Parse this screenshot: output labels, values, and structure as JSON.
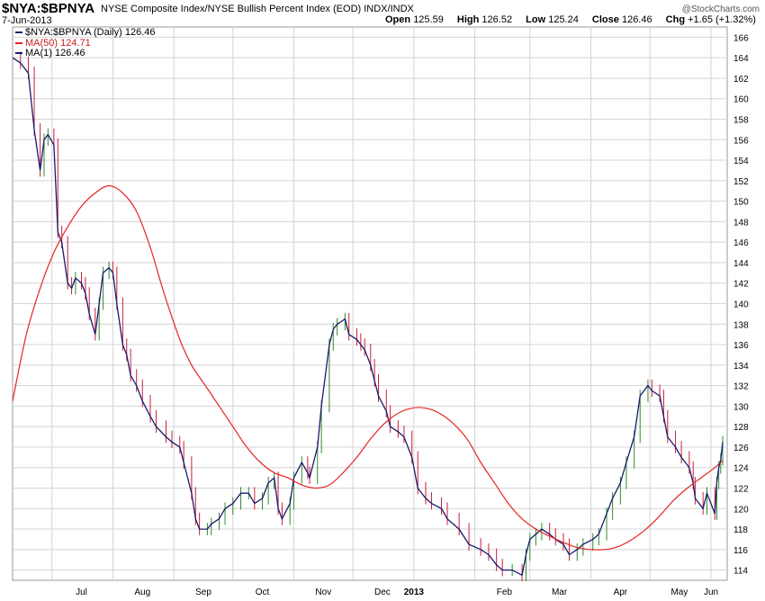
{
  "header": {
    "symbol": "$NYA:$BPNYA",
    "description": "NYSE Composite Index/NYSE Bullish Percent Index (EOD)  INDX/INDX",
    "brand": "@StockCharts.com",
    "date": "7-Jun-2013",
    "open_label": "Open",
    "open": "125.59",
    "high_label": "High",
    "high": "126.52",
    "low_label": "Low",
    "low": "125.24",
    "close_label": "Close",
    "close": "126.46",
    "chg_label": "Chg",
    "chg": "+1.65 (+1.32%)"
  },
  "legend": [
    {
      "label": "$NYA:$BPNYA (Daily) 126.46",
      "color": "#1a1a6e"
    },
    {
      "label": "MA(50) 124.71",
      "color": "#e8231f"
    },
    {
      "label": "MA(1) 126.46",
      "color": "#1a1a6e"
    }
  ],
  "chart_data": {
    "type": "line",
    "ylim": [
      113,
      167
    ],
    "yticks": [
      "114",
      "116",
      "118",
      "120",
      "122",
      "124",
      "126",
      "128",
      "130",
      "132",
      "134",
      "136",
      "138",
      "140",
      "142",
      "144",
      "146",
      "148",
      "150",
      "152",
      "154",
      "156",
      "158",
      "160",
      "162",
      "164",
      "166"
    ],
    "xticks": [
      "Jul",
      "Aug",
      "Sep",
      "Oct",
      "Nov",
      "Dec",
      "2013",
      "Feb",
      "Mar",
      "Apr",
      "May",
      "Jun"
    ],
    "x_start": "2012-06-11",
    "x_end": "2013-06-07",
    "grid": true,
    "colors": {
      "price": "#1a1a6e",
      "ma50": "#e8231f",
      "up": "#2e8b2e",
      "down": "#c81e3a",
      "grid": "#d4d4d4"
    },
    "series": [
      {
        "name": "$NYA:$BPNYA (Daily)",
        "points": [
          [
            "2012-06-11",
            164.0
          ],
          [
            "2012-06-15",
            163.5
          ],
          [
            "2012-06-19",
            162.5
          ],
          [
            "2012-06-22",
            157.0
          ],
          [
            "2012-06-25",
            153.0
          ],
          [
            "2012-06-27",
            156.0
          ],
          [
            "2012-06-29",
            156.5
          ],
          [
            "2012-07-02",
            155.5
          ],
          [
            "2012-07-04",
            147.0
          ],
          [
            "2012-07-06",
            146.0
          ],
          [
            "2012-07-09",
            142.0
          ],
          [
            "2012-07-11",
            141.5
          ],
          [
            "2012-07-13",
            142.5
          ],
          [
            "2012-07-16",
            142.0
          ],
          [
            "2012-07-18",
            141.0
          ],
          [
            "2012-07-20",
            139.0
          ],
          [
            "2012-07-23",
            137.0
          ],
          [
            "2012-07-25",
            140.0
          ],
          [
            "2012-07-27",
            143.0
          ],
          [
            "2012-07-30",
            143.5
          ],
          [
            "2012-08-01",
            143.0
          ],
          [
            "2012-08-03",
            140.0
          ],
          [
            "2012-08-06",
            136.0
          ],
          [
            "2012-08-08",
            135.0
          ],
          [
            "2012-08-10",
            133.0
          ],
          [
            "2012-08-13",
            132.0
          ],
          [
            "2012-08-16",
            130.5
          ],
          [
            "2012-08-20",
            129.0
          ],
          [
            "2012-08-23",
            128.0
          ],
          [
            "2012-08-28",
            127.0
          ],
          [
            "2012-08-31",
            126.5
          ],
          [
            "2012-09-04",
            126.0
          ],
          [
            "2012-09-06",
            124.5
          ],
          [
            "2012-09-10",
            121.5
          ],
          [
            "2012-09-12",
            119.0
          ],
          [
            "2012-09-14",
            118.0
          ],
          [
            "2012-09-18",
            118.0
          ],
          [
            "2012-09-20",
            118.5
          ],
          [
            "2012-09-24",
            119.0
          ],
          [
            "2012-09-27",
            120.0
          ],
          [
            "2012-10-01",
            120.5
          ],
          [
            "2012-10-05",
            121.5
          ],
          [
            "2012-10-09",
            121.5
          ],
          [
            "2012-10-12",
            120.5
          ],
          [
            "2012-10-16",
            121.0
          ],
          [
            "2012-10-19",
            122.5
          ],
          [
            "2012-10-22",
            123.0
          ],
          [
            "2012-10-24",
            120.0
          ],
          [
            "2012-10-26",
            119.0
          ],
          [
            "2012-10-30",
            120.5
          ],
          [
            "2012-11-01",
            123.0
          ],
          [
            "2012-11-05",
            124.5
          ],
          [
            "2012-11-08",
            123.5
          ],
          [
            "2012-11-09",
            123.0
          ],
          [
            "2012-11-13",
            126.0
          ],
          [
            "2012-11-15",
            130.0
          ],
          [
            "2012-11-19",
            136.0
          ],
          [
            "2012-11-21",
            137.5
          ],
          [
            "2012-11-23",
            138.0
          ],
          [
            "2012-11-27",
            138.5
          ],
          [
            "2012-11-29",
            137.0
          ],
          [
            "2012-12-03",
            136.5
          ],
          [
            "2012-12-05",
            136.0
          ],
          [
            "2012-12-07",
            135.5
          ],
          [
            "2012-12-10",
            134.0
          ],
          [
            "2012-12-12",
            132.5
          ],
          [
            "2012-12-14",
            131.0
          ],
          [
            "2012-12-18",
            129.5
          ],
          [
            "2012-12-20",
            128.0
          ],
          [
            "2012-12-24",
            127.5
          ],
          [
            "2012-12-27",
            127.0
          ],
          [
            "2012-12-31",
            125.0
          ],
          [
            "2013-01-03",
            122.0
          ],
          [
            "2013-01-07",
            121.0
          ],
          [
            "2013-01-10",
            120.5
          ],
          [
            "2013-01-15",
            120.0
          ],
          [
            "2013-01-18",
            119.0
          ],
          [
            "2013-01-24",
            118.0
          ],
          [
            "2013-01-29",
            116.5
          ],
          [
            "2013-02-04",
            116.0
          ],
          [
            "2013-02-08",
            115.5
          ],
          [
            "2013-02-12",
            114.5
          ],
          [
            "2013-02-15",
            114.0
          ],
          [
            "2013-02-20",
            114.0
          ],
          [
            "2013-02-25",
            113.5
          ],
          [
            "2013-02-27",
            115.5
          ],
          [
            "2013-03-01",
            117.0
          ],
          [
            "2013-03-04",
            117.5
          ],
          [
            "2013-03-07",
            118.0
          ],
          [
            "2013-03-11",
            117.5
          ],
          [
            "2013-03-14",
            117.0
          ],
          [
            "2013-03-18",
            116.5
          ],
          [
            "2013-03-21",
            115.5
          ],
          [
            "2013-03-25",
            116.0
          ],
          [
            "2013-03-28",
            116.5
          ],
          [
            "2013-04-02",
            117.0
          ],
          [
            "2013-04-05",
            117.5
          ],
          [
            "2013-04-09",
            119.5
          ],
          [
            "2013-04-12",
            121.0
          ],
          [
            "2013-04-16",
            122.5
          ],
          [
            "2013-04-19",
            124.5
          ],
          [
            "2013-04-23",
            127.0
          ],
          [
            "2013-04-26",
            131.0
          ],
          [
            "2013-04-30",
            132.0
          ],
          [
            "2013-05-02",
            131.5
          ],
          [
            "2013-05-06",
            131.0
          ],
          [
            "2013-05-08",
            129.0
          ],
          [
            "2013-05-10",
            127.0
          ],
          [
            "2013-05-14",
            126.0
          ],
          [
            "2013-05-17",
            125.0
          ],
          [
            "2013-05-21",
            124.0
          ],
          [
            "2013-05-23",
            122.5
          ],
          [
            "2013-05-24",
            121.0
          ],
          [
            "2013-05-28",
            120.0
          ],
          [
            "2013-05-30",
            121.5
          ],
          [
            "2013-06-03",
            119.5
          ],
          [
            "2013-06-04",
            122.5
          ],
          [
            "2013-06-05",
            124.0
          ],
          [
            "2013-06-06",
            124.8
          ],
          [
            "2013-06-07",
            126.5
          ]
        ]
      },
      {
        "name": "MA(50)",
        "points": [
          [
            "2012-06-11",
            130.5
          ],
          [
            "2012-06-18",
            137.0
          ],
          [
            "2012-06-25",
            141.5
          ],
          [
            "2012-07-02",
            145.0
          ],
          [
            "2012-07-09",
            147.5
          ],
          [
            "2012-07-16",
            149.5
          ],
          [
            "2012-07-23",
            150.8
          ],
          [
            "2012-07-30",
            151.5
          ],
          [
            "2012-08-06",
            150.8
          ],
          [
            "2012-08-13",
            149.0
          ],
          [
            "2012-08-20",
            145.5
          ],
          [
            "2012-08-27",
            141.0
          ],
          [
            "2012-09-04",
            136.5
          ],
          [
            "2012-09-10",
            134.0
          ],
          [
            "2012-09-17",
            132.0
          ],
          [
            "2012-09-24",
            130.0
          ],
          [
            "2012-10-01",
            128.0
          ],
          [
            "2012-10-08",
            126.0
          ],
          [
            "2012-10-15",
            124.5
          ],
          [
            "2012-10-22",
            123.5
          ],
          [
            "2012-10-29",
            123.0
          ],
          [
            "2012-11-05",
            122.3
          ],
          [
            "2012-11-12",
            122.0
          ],
          [
            "2012-11-19",
            122.3
          ],
          [
            "2012-11-26",
            123.5
          ],
          [
            "2012-12-03",
            125.0
          ],
          [
            "2012-12-10",
            126.8
          ],
          [
            "2012-12-17",
            128.3
          ],
          [
            "2012-12-24",
            129.3
          ],
          [
            "2012-12-31",
            129.8
          ],
          [
            "2013-01-07",
            129.8
          ],
          [
            "2013-01-14",
            129.3
          ],
          [
            "2013-01-21",
            128.3
          ],
          [
            "2013-01-28",
            126.8
          ],
          [
            "2013-02-04",
            124.5
          ],
          [
            "2013-02-11",
            122.5
          ],
          [
            "2013-02-18",
            120.5
          ],
          [
            "2013-02-25",
            119.0
          ],
          [
            "2013-03-04",
            118.0
          ],
          [
            "2013-03-11",
            117.3
          ],
          [
            "2013-03-18",
            116.7
          ],
          [
            "2013-03-25",
            116.2
          ],
          [
            "2013-04-01",
            116.0
          ],
          [
            "2013-04-08",
            116.0
          ],
          [
            "2013-04-15",
            116.3
          ],
          [
            "2013-04-22",
            117.0
          ],
          [
            "2013-04-29",
            118.0
          ],
          [
            "2013-05-06",
            119.3
          ],
          [
            "2013-05-13",
            120.8
          ],
          [
            "2013-05-20",
            122.0
          ],
          [
            "2013-05-27",
            123.0
          ],
          [
            "2013-06-03",
            124.0
          ],
          [
            "2013-06-07",
            124.7
          ]
        ]
      }
    ]
  }
}
